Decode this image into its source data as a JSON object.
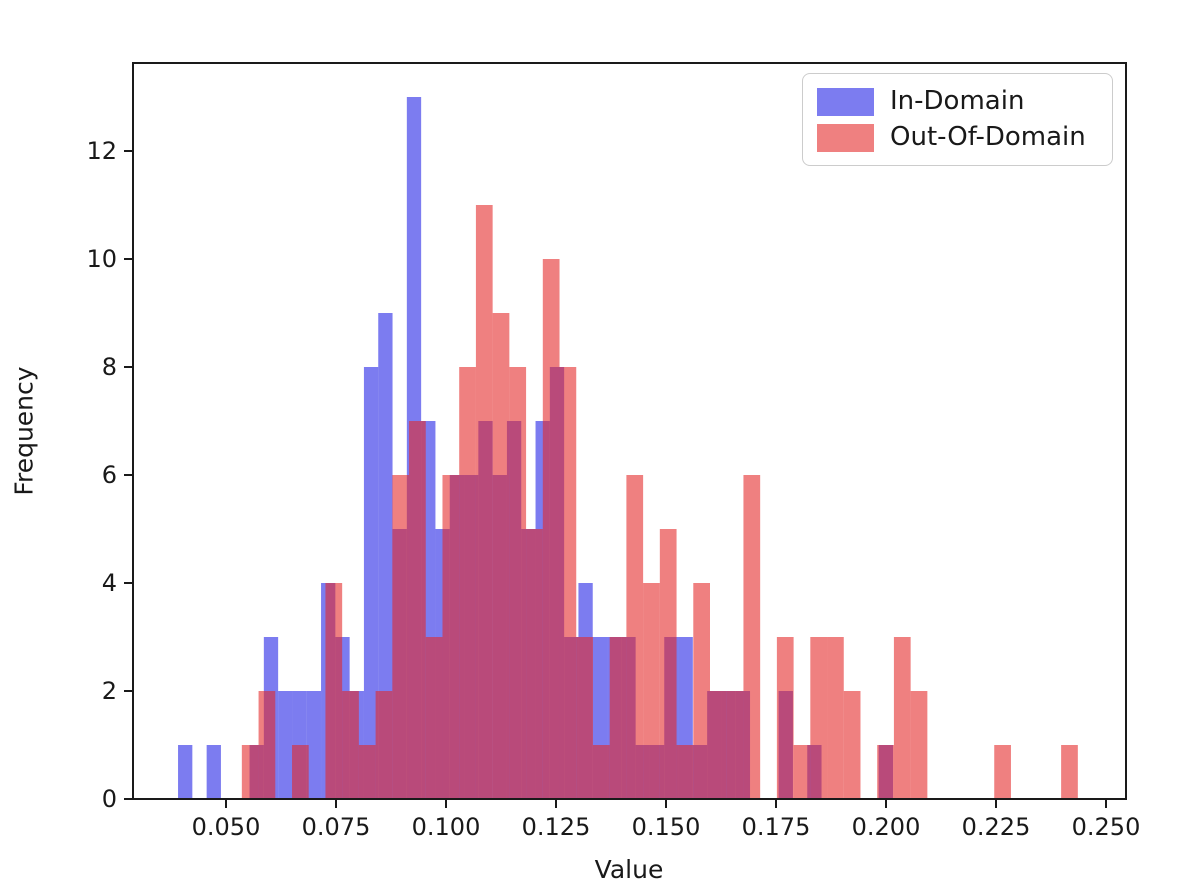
{
  "chart_data": {
    "type": "histogram",
    "title": "",
    "xlabel": "Value",
    "ylabel": "Frequency",
    "grid": false,
    "legend_position": "upper right",
    "xlim": [
      0.0289,
      0.2545
    ],
    "ylim": [
      0,
      13.63
    ],
    "x_tick_labels": [
      "0.050",
      "0.075",
      "0.100",
      "0.125",
      "0.150",
      "0.175",
      "0.200",
      "0.225",
      "0.250"
    ],
    "x_tick_values": [
      0.05,
      0.075,
      0.1,
      0.125,
      0.15,
      0.175,
      0.2,
      0.225,
      0.25
    ],
    "y_tick_labels": [
      "0",
      "2",
      "4",
      "6",
      "8",
      "10",
      "12"
    ],
    "y_tick_values": [
      0,
      2,
      4,
      6,
      8,
      10,
      12
    ],
    "series": [
      {
        "name": "In-Domain",
        "color": "#2525e6",
        "fill_alpha": 0.6,
        "bin_start": 0.0391,
        "bin_width": 0.00325,
        "counts": [
          1,
          0,
          1,
          0,
          0,
          1,
          3,
          2,
          2,
          2,
          4,
          3,
          2,
          8,
          9,
          5,
          13,
          7,
          5,
          6,
          6,
          7,
          6,
          7,
          5,
          7,
          8,
          3,
          4,
          3,
          3,
          3,
          1,
          1,
          3,
          3,
          1,
          2,
          2,
          2,
          0,
          0,
          2,
          0,
          1,
          0,
          0,
          0,
          0,
          1
        ]
      },
      {
        "name": "Out-Of-Domain",
        "color": "#e42727",
        "fill_alpha": 0.59,
        "bin_start": 0.0536,
        "bin_width": 0.0038,
        "counts": [
          1,
          2,
          0,
          1,
          0,
          4,
          2,
          1,
          2,
          6,
          7,
          3,
          6,
          8,
          11,
          9,
          8,
          5,
          10,
          8,
          3,
          1,
          3,
          6,
          4,
          5,
          1,
          4,
          2,
          2,
          6,
          0,
          3,
          1,
          3,
          3,
          2,
          0,
          1,
          3,
          2,
          0,
          0,
          0,
          0,
          1,
          0,
          0,
          0,
          1
        ]
      }
    ]
  }
}
